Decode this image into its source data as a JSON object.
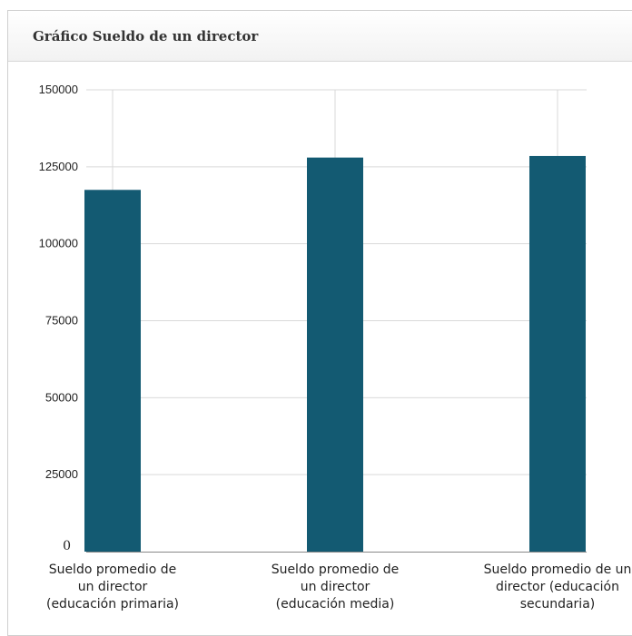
{
  "panel": {
    "title": "Gráfico Sueldo de un director"
  },
  "chart_data": {
    "type": "bar",
    "title": "",
    "xlabel": "",
    "ylabel": "",
    "ylim": [
      0,
      150000
    ],
    "yticks": [
      0,
      25000,
      50000,
      75000,
      100000,
      125000,
      150000
    ],
    "grid": true,
    "legend": "none",
    "bar_color": "#135a72",
    "categories": [
      [
        "Sueldo promedio de",
        "un director",
        "(educación primaria)"
      ],
      [
        "Sueldo promedio de",
        "un director",
        "(educación media)"
      ],
      [
        "Sueldo promedio de un",
        "director (educación",
        "secundaria)"
      ]
    ],
    "values": [
      117500,
      128000,
      128500
    ]
  }
}
